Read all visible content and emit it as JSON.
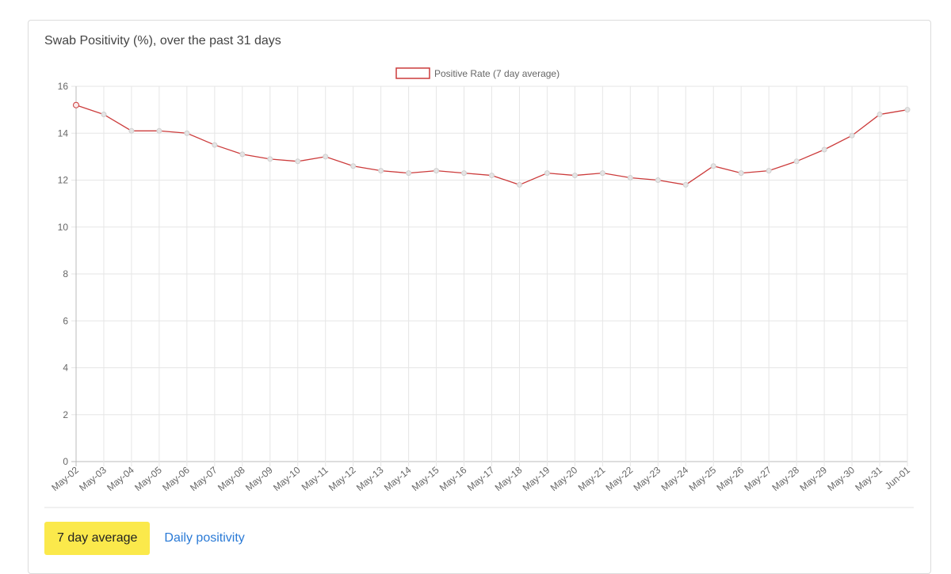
{
  "chart_data": {
    "type": "line",
    "title": "Swab Positivity (%), over the past 31 days",
    "categories": [
      "May-02",
      "May-03",
      "May-04",
      "May-05",
      "May-06",
      "May-07",
      "May-08",
      "May-09",
      "May-10",
      "May-11",
      "May-12",
      "May-13",
      "May-14",
      "May-15",
      "May-16",
      "May-17",
      "May-18",
      "May-19",
      "May-20",
      "May-21",
      "May-22",
      "May-23",
      "May-24",
      "May-25",
      "May-26",
      "May-27",
      "May-28",
      "May-29",
      "May-30",
      "May-31",
      "Jun-01"
    ],
    "series": [
      {
        "name": "Positive Rate (7 day average)",
        "color": "#cc3b3b",
        "values": [
          15.2,
          14.8,
          14.1,
          14.1,
          14.0,
          13.5,
          13.1,
          12.9,
          12.8,
          13.0,
          12.6,
          12.4,
          12.3,
          12.4,
          12.3,
          12.2,
          11.8,
          12.3,
          12.2,
          12.3,
          12.1,
          12.0,
          11.8,
          12.6,
          12.3,
          12.4,
          12.8,
          13.3,
          13.9,
          14.8,
          15.0
        ]
      }
    ],
    "ylim": [
      0,
      16
    ],
    "yticks": [
      0,
      2,
      4,
      6,
      8,
      10,
      12,
      14,
      16
    ],
    "grid": true,
    "legend": "top"
  },
  "controls": {
    "active": "7 day average",
    "link": "Daily positivity"
  }
}
